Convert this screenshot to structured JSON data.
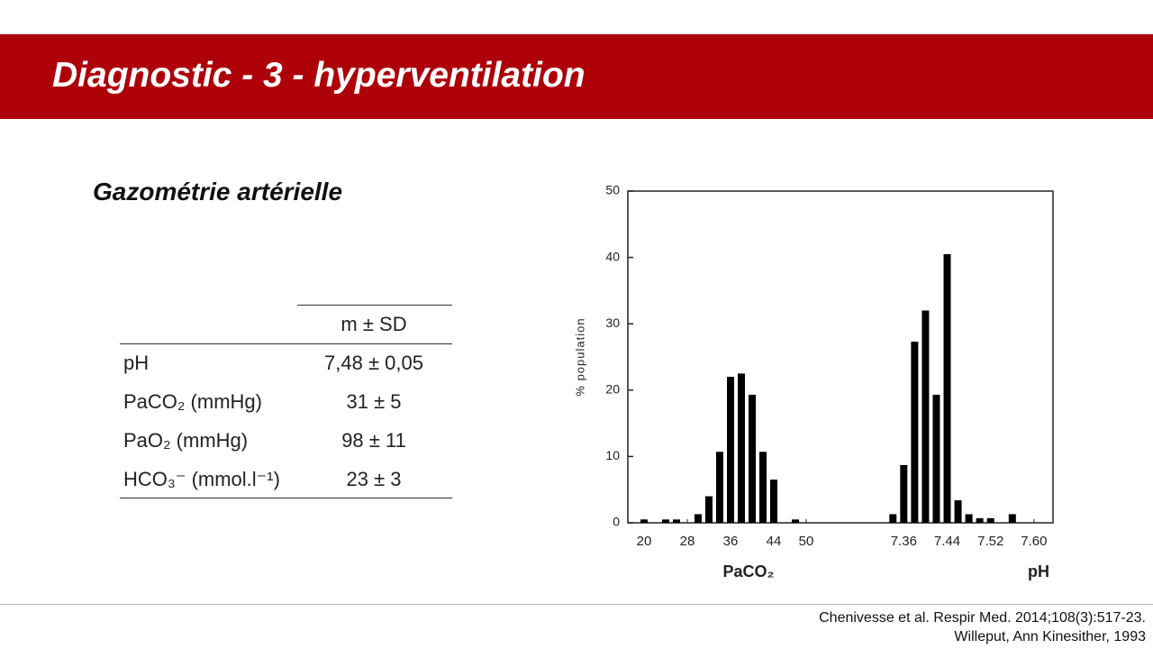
{
  "header": {
    "title": "Diagnostic - 3 - hyperventilation"
  },
  "subtitle": "Gazométrie artérielle",
  "table": {
    "header": [
      "",
      "m ± SD"
    ],
    "rows": [
      [
        "pH",
        "7,48 ± 0,05"
      ],
      [
        "PaCO₂ (mmHg)",
        "31 ± 5"
      ],
      [
        "PaO₂ (mmHg)",
        "98 ± 11"
      ],
      [
        "HCO₃⁻ (mmol.l⁻¹)",
        "23 ± 3"
      ]
    ]
  },
  "chart_data": [
    {
      "type": "bar",
      "ylabel": "% population",
      "xlabel": "PaCO₂",
      "x": [
        20,
        24,
        26,
        30,
        32,
        34,
        36,
        38,
        40,
        42,
        44,
        48
      ],
      "values": [
        0.5,
        0.5,
        0.5,
        1.3,
        4,
        10.7,
        22,
        22.5,
        19.3,
        10.7,
        6.5,
        0.5
      ],
      "color": "#000000",
      "xlim": [
        17,
        55
      ],
      "xticks": [
        20,
        28,
        36,
        44,
        50
      ],
      "ylim": [
        0,
        50
      ],
      "yticks": [
        0,
        10,
        20,
        30,
        40,
        50
      ]
    },
    {
      "type": "bar",
      "xlabel": "pH",
      "x": [
        7.34,
        7.36,
        7.38,
        7.4,
        7.42,
        7.44,
        7.46,
        7.48,
        7.5,
        7.52,
        7.56
      ],
      "values": [
        1.3,
        8.7,
        27.3,
        32,
        19.3,
        40.5,
        3.4,
        1.3,
        0.7,
        0.7,
        1.3
      ],
      "color": "#000000",
      "xlim": [
        7.23,
        7.635
      ],
      "xticks": [
        7.36,
        7.44,
        7.52,
        {
          "value": 7.6,
          "label": "7.60"
        }
      ],
      "ylim": [
        0,
        50
      ]
    }
  ],
  "citations": [
    "Chenivesse et al. Respir Med. 2014;108(3):517-23.",
    "Willeput, Ann Kinesither, 1993"
  ]
}
